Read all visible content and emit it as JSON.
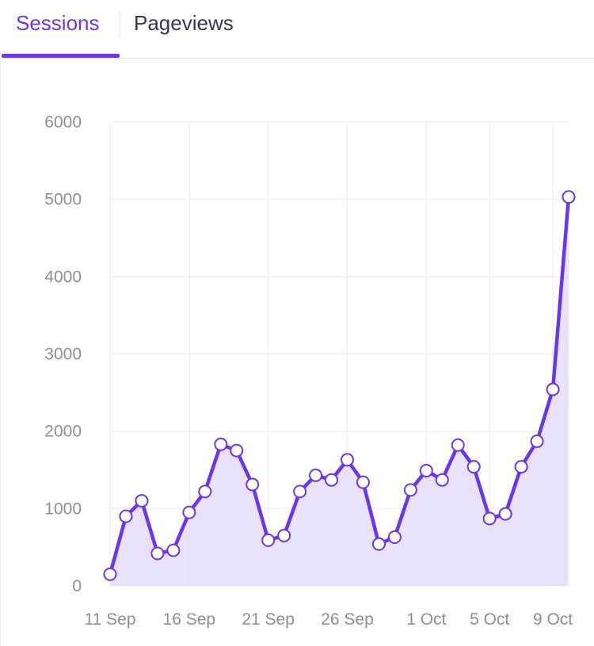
{
  "tabs": [
    {
      "label": "Sessions",
      "active": true
    },
    {
      "label": "Pageviews",
      "active": false
    }
  ],
  "colors": {
    "accent": "#6a35f0",
    "area_fill": "#e6ddfc",
    "grid": "#f0f0f3",
    "tick_text": "#8e8e96",
    "point_fill": "#ffffff"
  },
  "chart_data": {
    "type": "area",
    "title": "",
    "xlabel": "",
    "ylabel": "",
    "ylim": [
      0,
      6000
    ],
    "yticks": [
      0,
      1000,
      2000,
      3000,
      4000,
      5000,
      6000
    ],
    "x": [
      "11 Sep",
      "12 Sep",
      "13 Sep",
      "14 Sep",
      "15 Sep",
      "16 Sep",
      "17 Sep",
      "18 Sep",
      "19 Sep",
      "20 Sep",
      "21 Sep",
      "22 Sep",
      "23 Sep",
      "24 Sep",
      "25 Sep",
      "26 Sep",
      "27 Sep",
      "28 Sep",
      "29 Sep",
      "30 Sep",
      "1 Oct",
      "2 Oct",
      "3 Oct",
      "4 Oct",
      "5 Oct",
      "6 Oct",
      "7 Oct",
      "8 Oct",
      "9 Oct",
      "10 Oct"
    ],
    "xtick_labels": [
      "11 Sep",
      "16 Sep",
      "21 Sep",
      "26 Sep",
      "1 Oct",
      "5 Oct",
      "9 Oct"
    ],
    "series": [
      {
        "values": [
          150,
          900,
          1100,
          420,
          460,
          950,
          1220,
          1830,
          1750,
          1310,
          590,
          650,
          1220,
          1430,
          1370,
          1630,
          1340,
          540,
          630,
          1240,
          1490,
          1370,
          1820,
          1540,
          870,
          930,
          1540,
          1870,
          2540,
          5030
        ]
      }
    ],
    "grid": true,
    "legend": "none"
  }
}
